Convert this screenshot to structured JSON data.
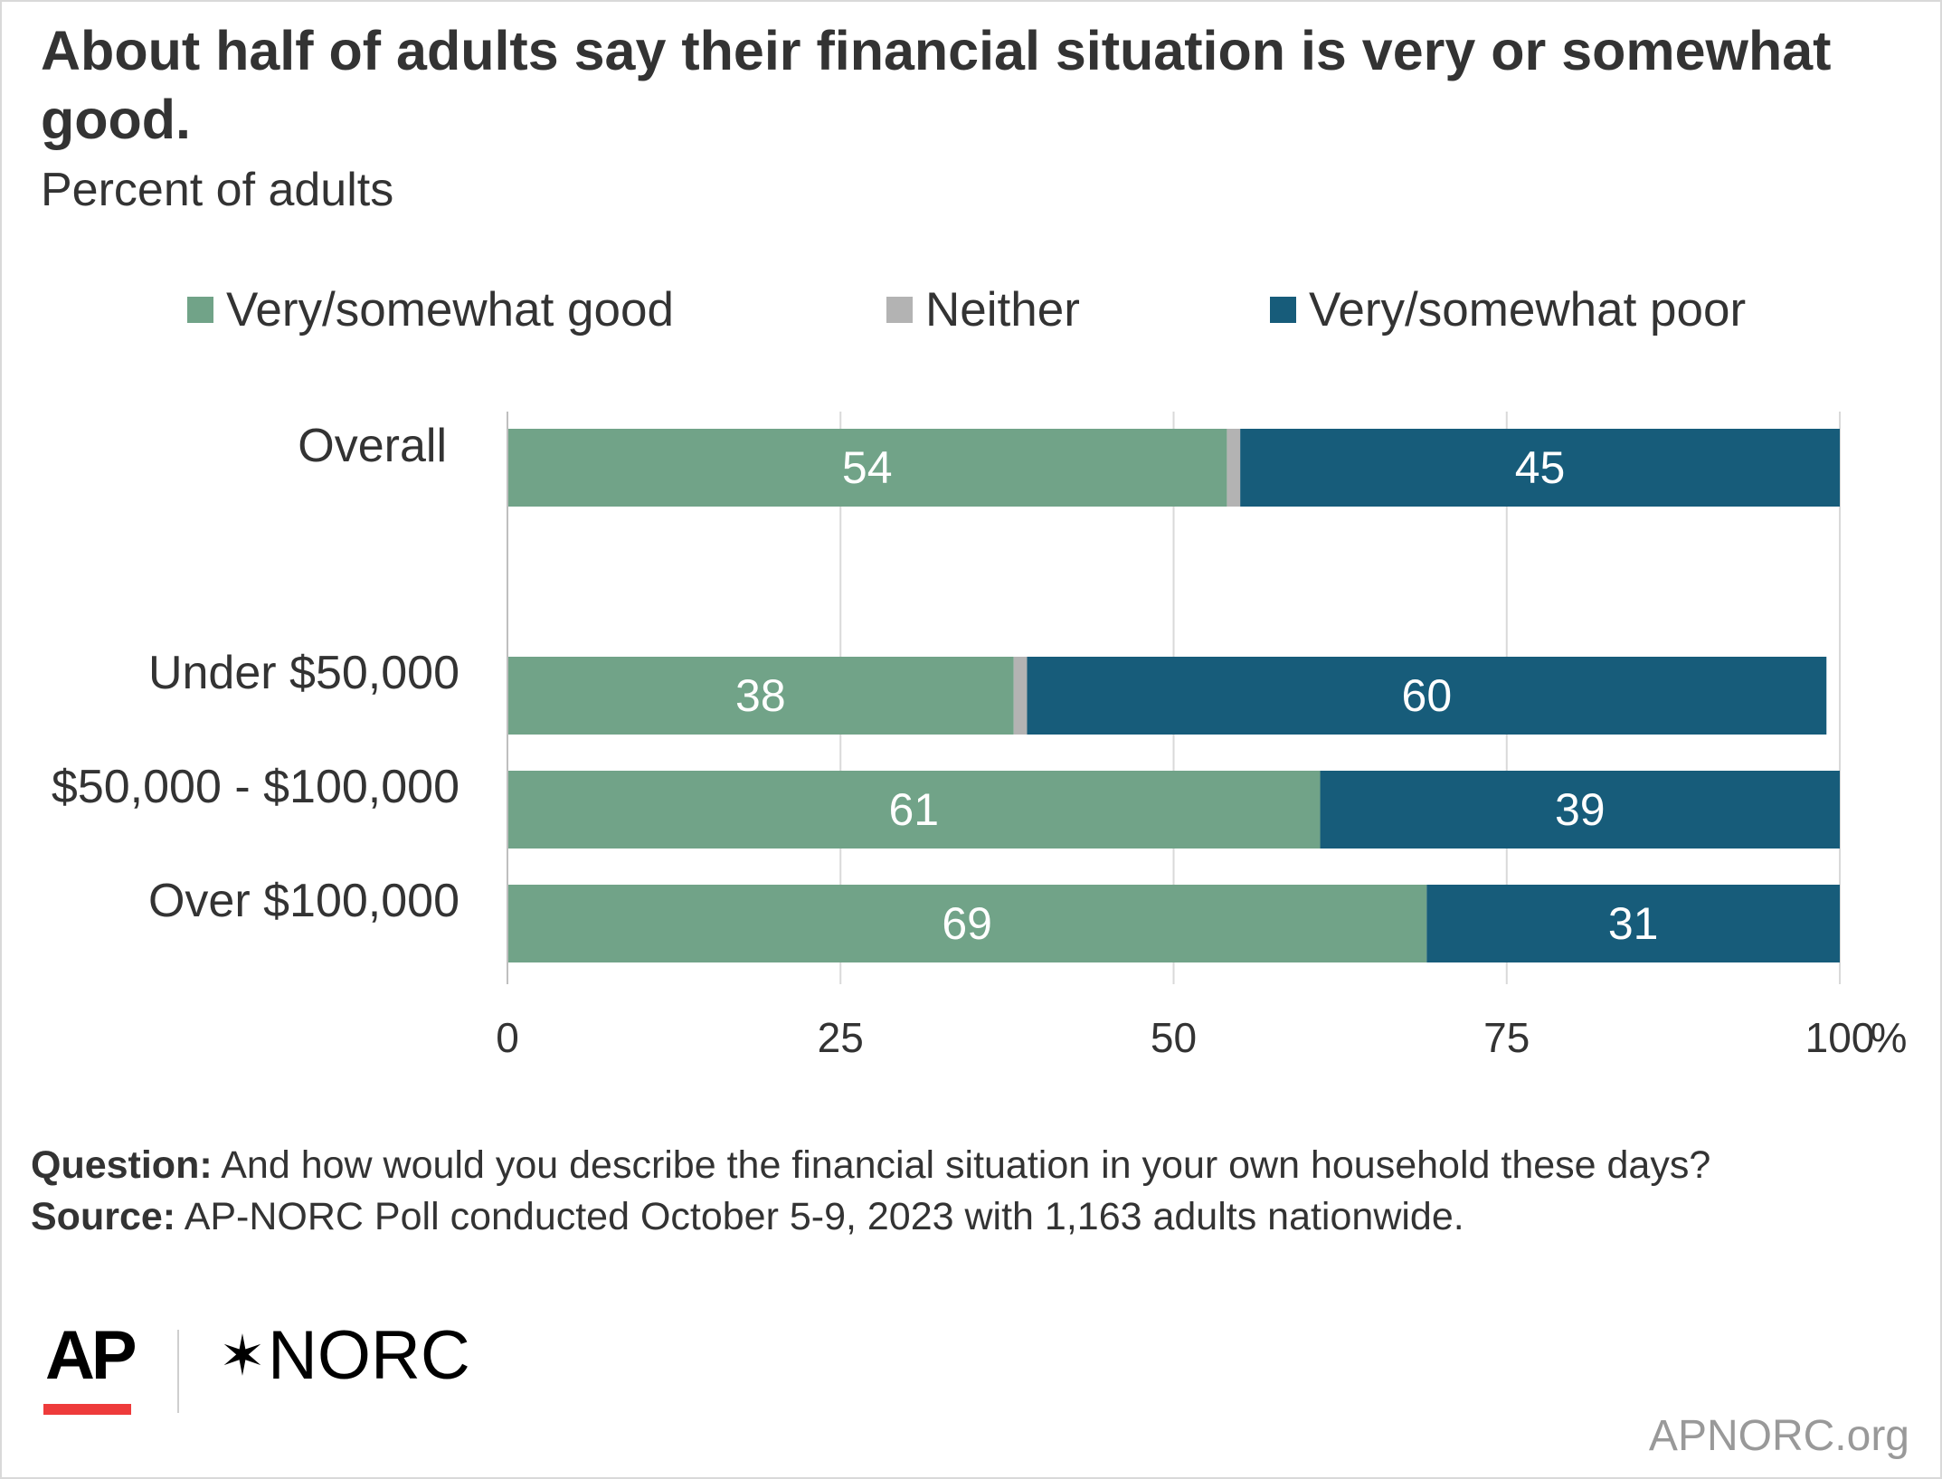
{
  "header": {
    "title": "About half of adults say their financial situation is very or somewhat good.",
    "subtitle": "Percent of adults"
  },
  "legend": [
    {
      "label": "Very/somewhat good",
      "color": "#71a388"
    },
    {
      "label": "Neither",
      "color": "#b3b3b3"
    },
    {
      "label": "Very/somewhat poor",
      "color": "#175c7a"
    }
  ],
  "chart_data": {
    "type": "bar",
    "orientation": "horizontal",
    "stacked": true,
    "categories": [
      "Overall",
      "Under $50,000",
      "$50,000 - $100,000",
      "Over $100,000"
    ],
    "series": [
      {
        "name": "Very/somewhat good",
        "color": "#71a388",
        "values": [
          54,
          38,
          61,
          69
        ]
      },
      {
        "name": "Neither",
        "color": "#b3b3b3",
        "values": [
          1,
          1,
          0,
          0
        ]
      },
      {
        "name": "Very/somewhat poor",
        "color": "#175c7a",
        "values": [
          45,
          60,
          39,
          31
        ]
      }
    ],
    "data_labels": {
      "Very/somewhat good": [
        54,
        38,
        61,
        69
      ],
      "Very/somewhat poor": [
        45,
        60,
        39,
        31
      ]
    },
    "xlim": [
      0,
      100
    ],
    "xticks": [
      "0",
      "25",
      "50",
      "75",
      "100"
    ],
    "unit_suffix": "%",
    "grid": true,
    "legend_position": "top"
  },
  "footer": {
    "question_label": "Question:",
    "question_text": "And how would you describe the financial situation in your own household these days?",
    "source_label": "Source:",
    "source_text": "AP-NORC Poll conducted October 5-9, 2023 with 1,163 adults nationwide."
  },
  "branding": {
    "ap_logo": "AP",
    "norc_logo": "NORC",
    "norc_star": "✶",
    "website": "APNORC.org"
  }
}
